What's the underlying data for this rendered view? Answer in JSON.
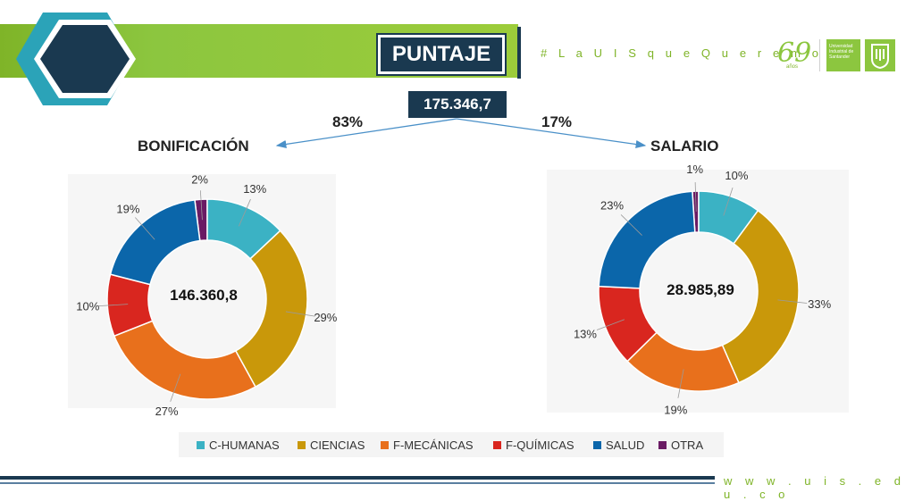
{
  "header": {
    "title": "PUNTAJE",
    "hashtag": "# L a U I S q u e Q u e r e m o s",
    "website": "w w w . u i s . e d u . c o",
    "logo_anniversary": "69",
    "logo_anniversary_sub": "años",
    "logo_university": "Universidad Industrial de Santander"
  },
  "colors": {
    "accent_green": "#8cc63f",
    "navy": "#1a3950",
    "teal": "#2ba3b8"
  },
  "chart_data": [
    {
      "type": "donut",
      "total": "175.346,7",
      "title": "BONIFICACIÓN",
      "share": "83%",
      "center_value": "146.360,8",
      "categories": [
        "C-HUMANAS",
        "CIENCIAS",
        "F-MECÁNICAS",
        "F-QUÍMICAS",
        "SALUD",
        "OTRA"
      ],
      "values": [
        13,
        29,
        27,
        10,
        19,
        2
      ],
      "labels": [
        "13%",
        "29%",
        "27%",
        "10%",
        "19%",
        "2%"
      ],
      "colors": [
        "#3bb2c4",
        "#c9980a",
        "#e8701c",
        "#d9261f",
        "#0b66aa",
        "#6a1b64"
      ]
    },
    {
      "type": "donut",
      "title": "SALARIO",
      "share": "17%",
      "center_value": "28.985,89",
      "categories": [
        "C-HUMANAS",
        "CIENCIAS",
        "F-MECÁNICAS",
        "F-QUÍMICAS",
        "SALUD",
        "OTRA"
      ],
      "values": [
        10,
        33,
        19,
        13,
        23,
        1
      ],
      "labels": [
        "10%",
        "33%",
        "19%",
        "13%",
        "23%",
        "1%"
      ],
      "colors": [
        "#3bb2c4",
        "#c9980a",
        "#e8701c",
        "#d9261f",
        "#0b66aa",
        "#6a1b64"
      ]
    }
  ],
  "legend": {
    "items": [
      {
        "label": "C-HUMANAS",
        "color": "#3bb2c4"
      },
      {
        "label": "CIENCIAS",
        "color": "#c9980a"
      },
      {
        "label": "F-MECÁNICAS",
        "color": "#e8701c"
      },
      {
        "label": "F-QUÍMICAS",
        "color": "#d9261f"
      },
      {
        "label": "SALUD",
        "color": "#0b66aa"
      },
      {
        "label": "OTRA",
        "color": "#6a1b64"
      }
    ]
  }
}
